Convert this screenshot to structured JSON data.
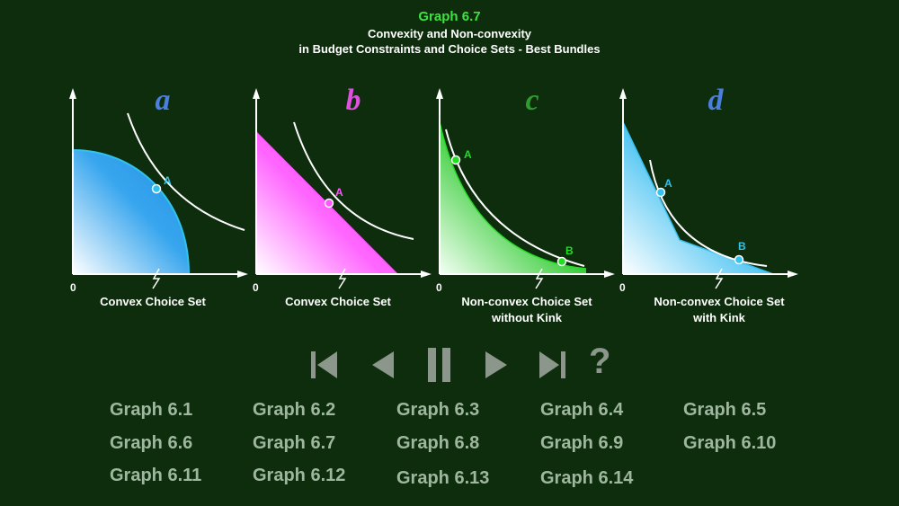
{
  "header": {
    "graph_title": "Graph 6.7",
    "subtitle_line1": "Convexity and Non-convexity",
    "subtitle_line2": "in Budget Constraints and Choice Sets - Best Bundles"
  },
  "panels": [
    {
      "letter": "a",
      "origin": "0",
      "point_label": "A",
      "caption_line1": "Convex Choice Set",
      "caption_line2": "",
      "letter_color": "#4a7fe0",
      "fill_color": "#2aa8ee",
      "point_color": "#2fc3ee"
    },
    {
      "letter": "b",
      "origin": "0",
      "point_label": "A",
      "caption_line1": "Convex Choice Set",
      "caption_line2": "",
      "letter_color": "#e050e0",
      "fill_color": "#ff44ff",
      "point_color": "#ff55ff"
    },
    {
      "letter": "c",
      "origin": "0",
      "point_label": "A",
      "point_label_2": "B",
      "caption_line1": "Non-convex Choice Set",
      "caption_line2": "without Kink",
      "letter_color": "#2f9a2f",
      "fill_color": "#10c010",
      "point_color": "#22dd22"
    },
    {
      "letter": "d",
      "origin": "0",
      "point_label": "A",
      "point_label_2": "B",
      "caption_line1": "Non-convex Choice Set",
      "caption_line2": "with Kink",
      "letter_color": "#4a7fe0",
      "fill_color": "#39c0f0",
      "point_color": "#2fc3ee"
    }
  ],
  "controls": {
    "first": "first-icon",
    "prev": "previous-icon",
    "pause": "pause-icon",
    "next": "next-icon",
    "last": "last-icon",
    "help": "?"
  },
  "graph_links": [
    "Graph 6.1",
    "Graph 6.2",
    "Graph 6.3",
    "Graph 6.4",
    "Graph 6.5",
    "Graph 6.6",
    "Graph 6.7",
    "Graph 6.8",
    "Graph 6.9",
    "Graph 6.10",
    "Graph 6.11",
    "Graph 6.12",
    "Graph 6.13",
    "Graph 6.14"
  ],
  "colors": {
    "background": "#0d2d0d",
    "title_green": "#3fe23f",
    "control_gray": "#8a978a",
    "link_gray": "#9fb79f"
  }
}
